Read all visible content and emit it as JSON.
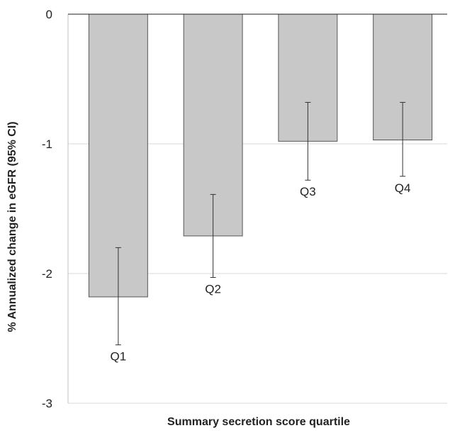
{
  "chart_data": {
    "type": "bar",
    "title": "",
    "xlabel": "Summary secretion score quartile",
    "ylabel": "% Annualized change in eGFR (95% CI)",
    "ylim": [
      -3,
      0
    ],
    "yticks": [
      "0",
      "-1",
      "-2",
      "-3"
    ],
    "ytick_values": [
      0,
      -1,
      -2,
      -3
    ],
    "grid": true,
    "categories": [
      "Q1",
      "Q2",
      "Q3",
      "Q4"
    ],
    "values": [
      -2.18,
      -1.71,
      -0.98,
      -0.97
    ],
    "ci_lower": [
      -2.55,
      -2.03,
      -1.28,
      -1.25
    ],
    "ci_upper": [
      -1.8,
      -1.39,
      -0.68,
      -0.68
    ],
    "colors": {
      "bar_fill": "#c8c8c8",
      "bar_stroke": "#555555",
      "gridline": "#d9d9d9",
      "axis": "#222222",
      "error_bar": "#333333"
    }
  }
}
